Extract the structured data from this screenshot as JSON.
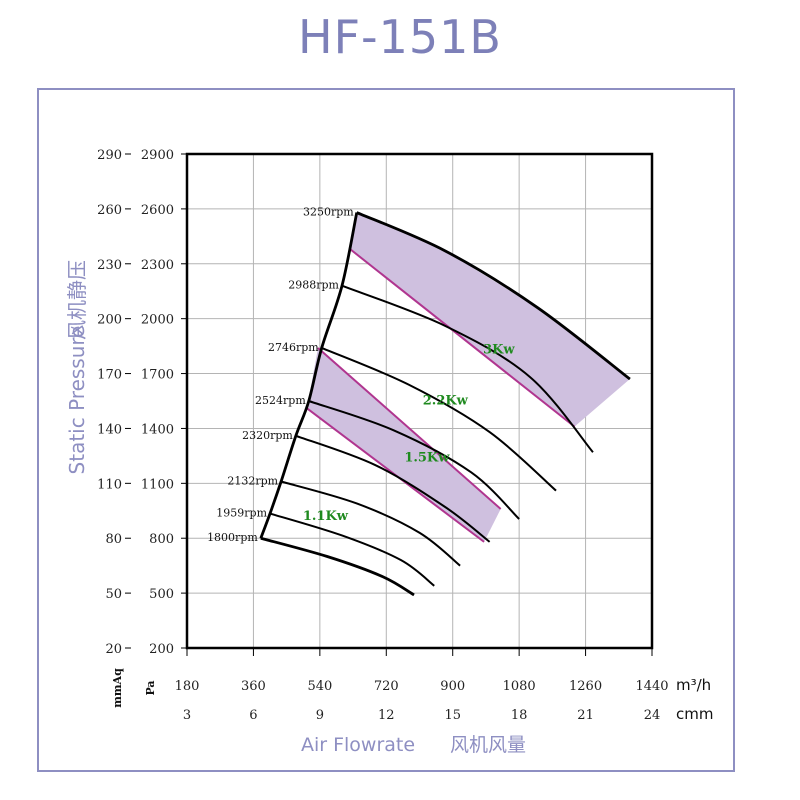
{
  "chart_data": {
    "type": "line",
    "title": "HF-151B",
    "xlabel": "Air Flowrate",
    "xlabel_cn": "风机风量",
    "ylabel": "Static Pressure",
    "ylabel_cn": "风机静压",
    "x_unit_primary": "m³/h",
    "x_unit_secondary": "cmm",
    "y_unit_primary": "Pa",
    "y_unit_secondary": "mmAq",
    "xlim": [
      180,
      1440
    ],
    "ylim": [
      200,
      2900
    ],
    "x_ticks_m3h": [
      "180",
      "360",
      "540",
      "720",
      "900",
      "1080",
      "1260",
      "1440"
    ],
    "x_ticks_cmm": [
      "3",
      "6",
      "9",
      "12",
      "15",
      "18",
      "21",
      "24"
    ],
    "y_ticks_pa": [
      "200",
      "500",
      "800",
      "1100",
      "1400",
      "1700",
      "2000",
      "2300",
      "2600",
      "2900"
    ],
    "y_ticks_mmaq": [
      "20",
      "50",
      "80",
      "110",
      "140",
      "170",
      "200",
      "230",
      "260",
      "290"
    ],
    "grid": true,
    "series": [
      {
        "name": "1800rpm",
        "points": [
          [
            380,
            800
          ],
          [
            560,
            700
          ],
          [
            710,
            590
          ],
          [
            795,
            490
          ]
        ]
      },
      {
        "name": "1959rpm",
        "points": [
          [
            405,
            935
          ],
          [
            600,
            815
          ],
          [
            760,
            680
          ],
          [
            850,
            540
          ]
        ]
      },
      {
        "name": "2132rpm",
        "points": [
          [
            435,
            1110
          ],
          [
            640,
            990
          ],
          [
            810,
            830
          ],
          [
            920,
            650
          ]
        ]
      },
      {
        "name": "2320rpm",
        "points": [
          [
            475,
            1360
          ],
          [
            690,
            1200
          ],
          [
            880,
            970
          ],
          [
            1000,
            780
          ]
        ]
      },
      {
        "name": "2524rpm",
        "points": [
          [
            510,
            1550
          ],
          [
            740,
            1390
          ],
          [
            950,
            1160
          ],
          [
            1080,
            905
          ]
        ]
      },
      {
        "name": "2746rpm",
        "points": [
          [
            545,
            1840
          ],
          [
            780,
            1640
          ],
          [
            1000,
            1380
          ],
          [
            1180,
            1060
          ]
        ]
      },
      {
        "name": "2988rpm",
        "points": [
          [
            600,
            2180
          ],
          [
            880,
            1960
          ],
          [
            1110,
            1680
          ],
          [
            1280,
            1270
          ]
        ]
      },
      {
        "name": "3250rpm",
        "points": [
          [
            640,
            2580
          ],
          [
            880,
            2370
          ],
          [
            1130,
            2060
          ],
          [
            1380,
            1670
          ]
        ]
      }
    ],
    "boundary": {
      "left": [
        [
          380,
          800
        ],
        [
          405,
          935
        ],
        [
          435,
          1110
        ],
        [
          475,
          1360
        ],
        [
          510,
          1550
        ],
        [
          545,
          1840
        ],
        [
          600,
          2180
        ],
        [
          640,
          2580
        ]
      ],
      "bottom": [
        [
          380,
          800
        ],
        [
          560,
          700
        ],
        [
          710,
          590
        ],
        [
          795,
          490
        ]
      ]
    },
    "power_zones": [
      {
        "label": "1.1Kw",
        "label_at": [
          555,
          900
        ]
      },
      {
        "label": "1.5Kw",
        "label_at": [
          830,
          1220
        ],
        "band": [
          [
            505,
            1510
          ],
          [
            535,
            1840
          ],
          [
            1030,
            960
          ],
          [
            985,
            780
          ]
        ]
      },
      {
        "label": "2.2Kw",
        "label_at": [
          880,
          1530
        ]
      },
      {
        "label": "3Kw",
        "label_at": [
          1025,
          1810
        ],
        "band": [
          [
            622,
            2380
          ],
          [
            640,
            2580
          ],
          [
            880,
            2370
          ],
          [
            1130,
            2060
          ],
          [
            1380,
            1670
          ],
          [
            1230,
            1410
          ]
        ]
      }
    ],
    "colors": {
      "frame": "#8e8fc2",
      "title": "#7d80b8",
      "band_fill": "#cfc0df",
      "band_edge": "#b0358f",
      "kw_label": "#1f8a1f",
      "curve": "#000000",
      "grid": "#b4b4b4"
    }
  }
}
